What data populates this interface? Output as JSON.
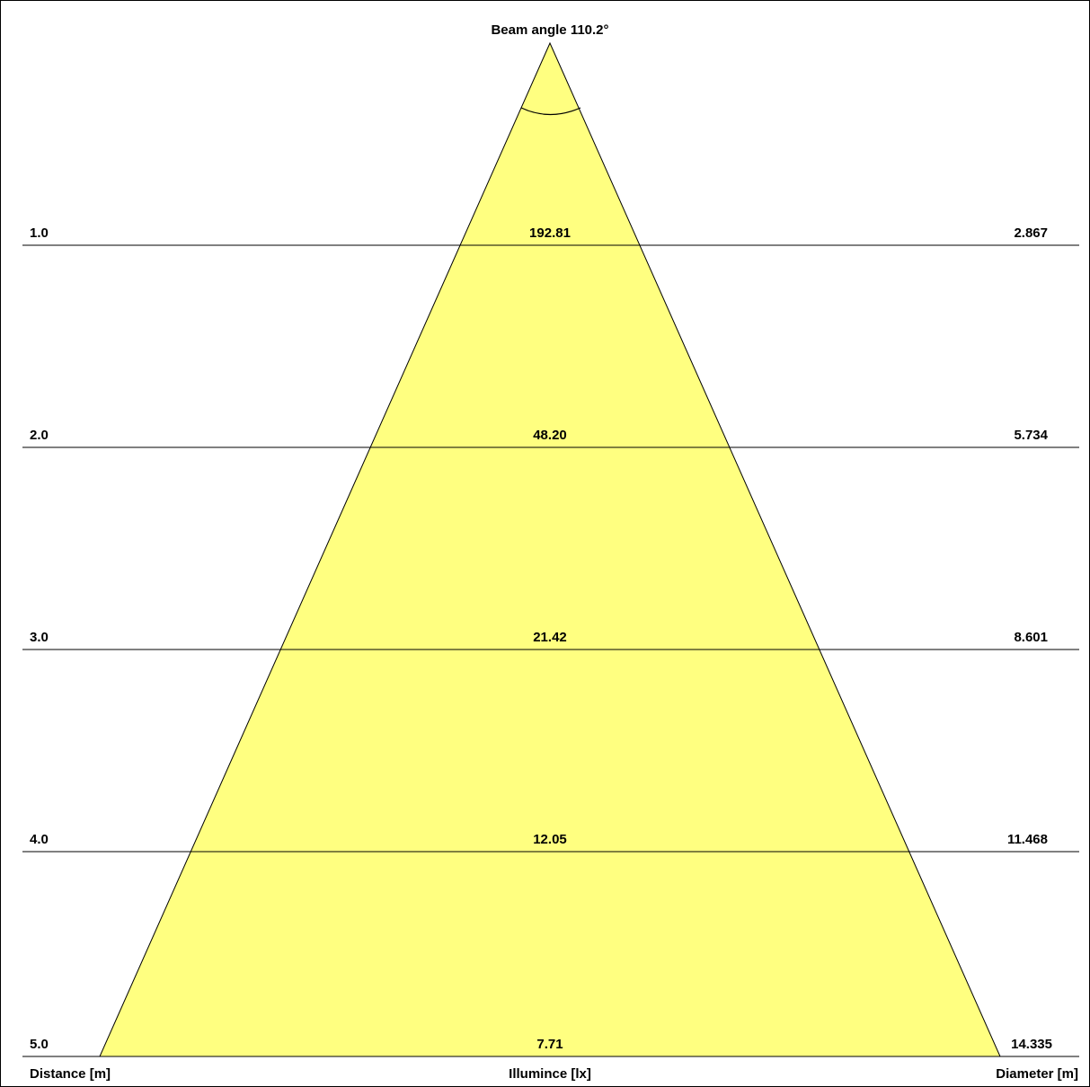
{
  "diagram": {
    "beam_label": "Beam angle 110.2°",
    "beam_angle_deg": 110.2,
    "fill_color": "#ffff80",
    "axis_labels": {
      "left": "Distance [m]",
      "center": "Illumince [lx]",
      "right": "Diameter [m]"
    },
    "rows": [
      {
        "distance": "1.0",
        "illuminance": "192.81",
        "diameter": "2.867"
      },
      {
        "distance": "2.0",
        "illuminance": "48.20",
        "diameter": "5.734"
      },
      {
        "distance": "3.0",
        "illuminance": "21.42",
        "diameter": "8.601"
      },
      {
        "distance": "4.0",
        "illuminance": "12.05",
        "diameter": "11.468"
      },
      {
        "distance": "5.0",
        "illuminance": "7.71",
        "diameter": "14.335"
      }
    ]
  }
}
